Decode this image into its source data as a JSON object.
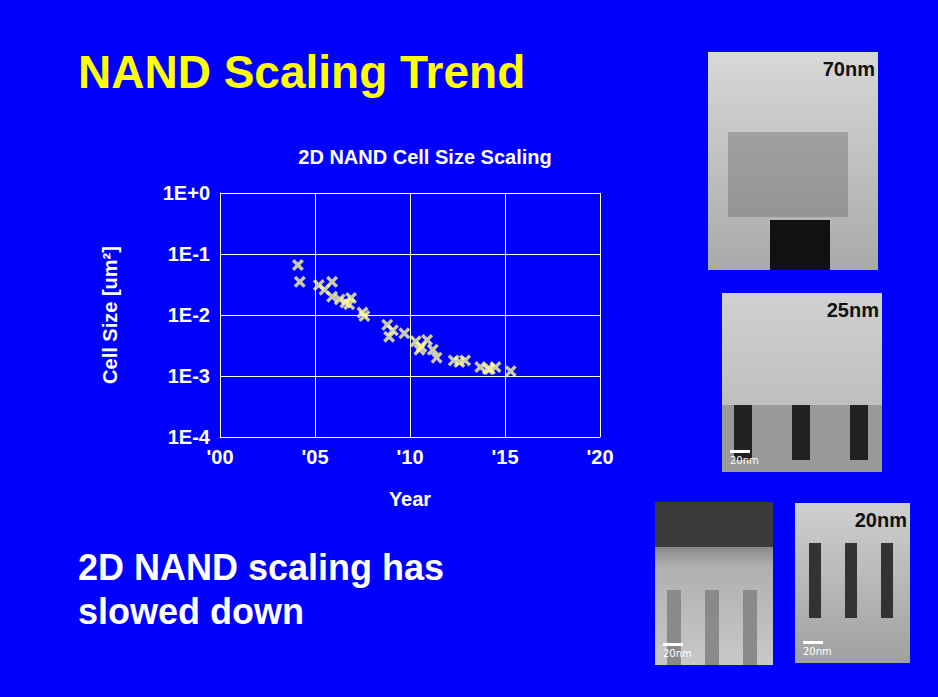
{
  "title": "NAND Scaling Trend",
  "caption": "2D NAND scaling has slowed down",
  "chart_data": {
    "type": "scatter",
    "title": "2D NAND Cell Size Scaling",
    "x_label": "Year",
    "y_label": "Cell Size [um²]",
    "log": "y",
    "grid": true,
    "marker": "x",
    "color": "#ffff99",
    "x": [
      2004.1,
      2004.2,
      2005.2,
      2005.5,
      2005.9,
      2005.9,
      2006.3,
      2006.6,
      2006.9,
      2006.8,
      2007.5,
      2007.6,
      2008.8,
      2009.1,
      2008.9,
      2009.7,
      2010.3,
      2010.6,
      2010.9,
      2011.2,
      2011.4,
      2010.5,
      2012.3,
      2012.6,
      2012.9,
      2013.7,
      2014.1,
      2014.2,
      2014.5,
      2015.3
    ],
    "values": [
      0.066,
      0.035,
      0.031,
      0.026,
      0.035,
      0.02,
      0.018,
      0.016,
      0.019,
      0.015,
      0.011,
      0.0096,
      0.0069,
      0.0056,
      0.0044,
      0.005,
      0.0037,
      0.003,
      0.0039,
      0.0027,
      0.002,
      0.0027,
      0.0018,
      0.0017,
      0.0018,
      0.0014,
      0.0013,
      0.0013,
      0.0014,
      0.0012
    ],
    "xlim": [
      2000,
      2020
    ],
    "xticks": [
      {
        "value": 2000,
        "label": "'00"
      },
      {
        "value": 2005,
        "label": "'05"
      },
      {
        "value": 2010,
        "label": "'10"
      },
      {
        "value": 2015,
        "label": "'15"
      },
      {
        "value": 2020,
        "label": "'20"
      }
    ],
    "ylim": [
      0.0001,
      1
    ],
    "yticks": [
      {
        "value": 0.0001,
        "label": "1E-4"
      },
      {
        "value": 0.001,
        "label": "1E-3"
      },
      {
        "value": 0.01,
        "label": "1E-2"
      },
      {
        "value": 0.1,
        "label": "1E-1"
      },
      {
        "value": 1,
        "label": "1E+0"
      }
    ]
  },
  "images": [
    {
      "label": "70nm"
    },
    {
      "label": "25nm",
      "scale_bar": "20nm"
    },
    {
      "scale_bar": "20nm"
    },
    {
      "label": "20nm",
      "scale_bar": "20nm"
    }
  ]
}
